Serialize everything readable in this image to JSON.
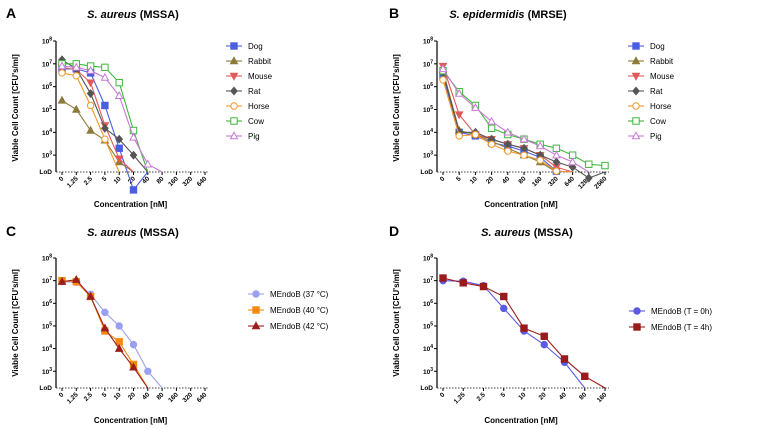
{
  "chart_data": [
    {
      "panel": "A",
      "type": "line",
      "title_italic": "S. aureus",
      "title_rest": " (MSSA)",
      "xlabel": "Concentration [nM]",
      "ylabel": "Viable Cell Count [CFU's/ml]",
      "x": [
        "0",
        "1.25",
        "2.5",
        "5",
        "10",
        "20",
        "40",
        "80",
        "160",
        "320",
        "640"
      ],
      "y_scale": "log",
      "y_ticks": [
        1000,
        10000,
        100000,
        1000000,
        10000000,
        100000000
      ],
      "lod_label": "LoD",
      "legend_position": "right",
      "series": [
        {
          "name": "Dog",
          "color": "#4a5fe0",
          "marker": "square",
          "values": [
            6000000,
            6000000,
            4000000,
            150000,
            2000,
            30,
            null,
            null,
            null,
            null,
            null
          ]
        },
        {
          "name": "Rabbit",
          "color": "#8b7a3a",
          "marker": "triangle",
          "values": [
            250000,
            100000,
            12000,
            4500,
            500,
            null,
            null,
            null,
            null,
            null,
            null
          ]
        },
        {
          "name": "Mouse",
          "color": "#e05a5a",
          "marker": "triangle-down",
          "values": [
            7000000,
            5500000,
            1500000,
            20000,
            700,
            null,
            null,
            null,
            null,
            null,
            null
          ]
        },
        {
          "name": "Rat",
          "color": "#555555",
          "marker": "diamond",
          "values": [
            15000000,
            6000000,
            500000,
            15000,
            5000,
            1000,
            null,
            null,
            null,
            null,
            null
          ]
        },
        {
          "name": "Horse",
          "color": "#f0972d",
          "marker": "circle-open",
          "values": [
            4000000,
            3000000,
            150000,
            5000,
            null,
            null,
            null,
            null,
            null,
            null,
            null
          ]
        },
        {
          "name": "Cow",
          "color": "#3cb83c",
          "marker": "square-open",
          "values": [
            10000000,
            10000000,
            8000000,
            7000000,
            1500000,
            12000,
            null,
            null,
            null,
            null,
            null
          ]
        },
        {
          "name": "Pig",
          "color": "#c77ad6",
          "marker": "triangle-open",
          "values": [
            8000000,
            7000000,
            5000000,
            2500000,
            400000,
            6000,
            400,
            null,
            null,
            null,
            null
          ]
        }
      ]
    },
    {
      "panel": "B",
      "type": "line",
      "title_italic": "S. epidermidis",
      "title_rest": " (MRSE)",
      "xlabel": "Concentration [nM]",
      "ylabel": "Viable Cell Count [CFU's/ml]",
      "x": [
        "0",
        "5",
        "10",
        "20",
        "40",
        "80",
        "160",
        "320",
        "640",
        "1280",
        "2560"
      ],
      "y_scale": "log",
      "y_ticks": [
        1000,
        10000,
        100000,
        1000000,
        10000000,
        100000000
      ],
      "lod_label": "LoD",
      "legend_position": "right",
      "series": [
        {
          "name": "Dog",
          "color": "#4a5fe0",
          "marker": "square",
          "values": [
            3000000,
            10000,
            7000,
            3500,
            2500,
            1500,
            800,
            200,
            null,
            null,
            null
          ]
        },
        {
          "name": "Rabbit",
          "color": "#8b7a3a",
          "marker": "triangle",
          "values": [
            5000000,
            12000,
            8000,
            4000,
            2000,
            1000,
            500,
            null,
            null,
            null,
            null
          ]
        },
        {
          "name": "Mouse",
          "color": "#e05a5a",
          "marker": "triangle-down",
          "values": [
            8000000,
            60000,
            8000,
            5000,
            3000,
            2000,
            1000,
            300,
            null,
            null,
            null
          ]
        },
        {
          "name": "Rat",
          "color": "#555555",
          "marker": "diamond",
          "values": [
            4000000,
            10000,
            10000,
            5000,
            3000,
            2000,
            1000,
            500,
            300,
            100,
            null
          ]
        },
        {
          "name": "Horse",
          "color": "#f0972d",
          "marker": "circle-open",
          "values": [
            2000000,
            7000,
            8000,
            3000,
            1500,
            1000,
            600,
            200,
            null,
            null,
            null
          ]
        },
        {
          "name": "Cow",
          "color": "#3cb83c",
          "marker": "square-open",
          "values": [
            5000000,
            600000,
            150000,
            15000,
            8000,
            5000,
            3000,
            2000,
            1000,
            400,
            350
          ]
        },
        {
          "name": "Pig",
          "color": "#c77ad6",
          "marker": "triangle-open",
          "values": [
            6000000,
            500000,
            120000,
            30000,
            10000,
            5000,
            2500,
            1000,
            500,
            null,
            null
          ]
        }
      ]
    },
    {
      "panel": "C",
      "type": "line",
      "title_italic": "S. aureus",
      "title_rest": " (MSSA)",
      "xlabel": "Concentration [nM]",
      "ylabel": "Viable Cell Count [CFU's/ml]",
      "x": [
        "0",
        "1.25",
        "2.5",
        "5",
        "10",
        "20",
        "40",
        "80",
        "160",
        "320",
        "640"
      ],
      "y_scale": "log",
      "y_ticks": [
        1000,
        10000,
        100000,
        1000000,
        10000000,
        100000000
      ],
      "lod_label": "LoD",
      "legend_position": "right",
      "series": [
        {
          "name": "MEndoB (37 °C)",
          "color": "#9aa0f0",
          "marker": "circle",
          "values": [
            9000000,
            8500000,
            2500000,
            400000,
            100000,
            15000,
            1000,
            null,
            null,
            null,
            null
          ]
        },
        {
          "name": "MEndoB (40 °C)",
          "color": "#f5890f",
          "marker": "square",
          "values": [
            10000000,
            9000000,
            2000000,
            60000,
            20000,
            2000,
            null,
            null,
            null,
            null,
            null
          ]
        },
        {
          "name": "MEndoB (42 °C)",
          "color": "#9b1f1f",
          "marker": "triangle",
          "values": [
            9000000,
            11000000,
            2000000,
            80000,
            10000,
            1500,
            null,
            null,
            null,
            null,
            null
          ]
        }
      ]
    },
    {
      "panel": "D",
      "type": "line",
      "title_italic": "S. aureus",
      "title_rest": " (MSSA)",
      "xlabel": "Concentration [nM]",
      "ylabel": "Viable Cell Count [CFU's/ml]",
      "x": [
        "0",
        "1.25",
        "2.5",
        "5",
        "10",
        "20",
        "40",
        "80",
        "160"
      ],
      "y_scale": "log",
      "y_ticks": [
        1000,
        10000,
        100000,
        1000000,
        10000000,
        100000000
      ],
      "lod_label": "LoD",
      "legend_position": "right",
      "series": [
        {
          "name": "MEndoB (T = 0h)",
          "color": "#5a5ae6",
          "marker": "circle",
          "values": [
            10000000,
            9500000,
            6000000,
            600000,
            60000,
            15000,
            2500,
            null,
            null
          ]
        },
        {
          "name": "MEndoB (T = 4h)",
          "color": "#991b1b",
          "marker": "square",
          "values": [
            13000000,
            8000000,
            5500000,
            2000000,
            80000,
            35000,
            3500,
            600,
            null
          ]
        }
      ]
    }
  ]
}
